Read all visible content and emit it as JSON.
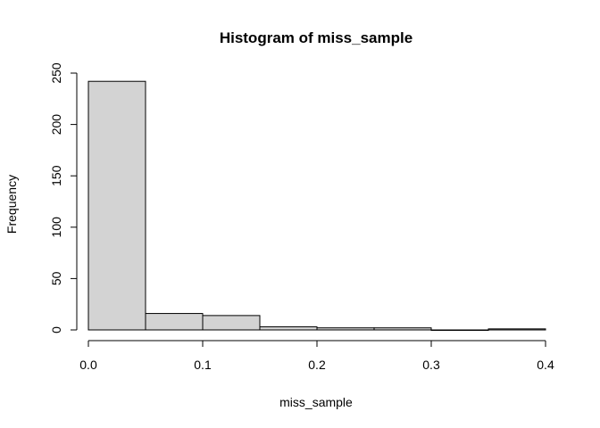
{
  "chart_data": {
    "type": "bar",
    "title": "Histogram of miss_sample",
    "xlabel": "miss_sample",
    "ylabel": "Frequency",
    "bins": [
      {
        "x0": 0.0,
        "x1": 0.05,
        "count": 242
      },
      {
        "x0": 0.05,
        "x1": 0.1,
        "count": 16
      },
      {
        "x0": 0.1,
        "x1": 0.15,
        "count": 14
      },
      {
        "x0": 0.15,
        "x1": 0.2,
        "count": 3
      },
      {
        "x0": 0.2,
        "x1": 0.25,
        "count": 2
      },
      {
        "x0": 0.25,
        "x1": 0.3,
        "count": 2
      },
      {
        "x0": 0.3,
        "x1": 0.35,
        "count": 0
      },
      {
        "x0": 0.35,
        "x1": 0.4,
        "count": 1
      }
    ],
    "xticks": [
      "0.0",
      "0.1",
      "0.2",
      "0.3",
      "0.4"
    ],
    "yticks": [
      "0",
      "50",
      "100",
      "150",
      "200",
      "250"
    ],
    "xlim": [
      0,
      0.4
    ],
    "ylim": [
      0,
      250
    ],
    "bar_fill": "#d3d3d3",
    "bar_stroke": "#000000",
    "grid": false
  }
}
